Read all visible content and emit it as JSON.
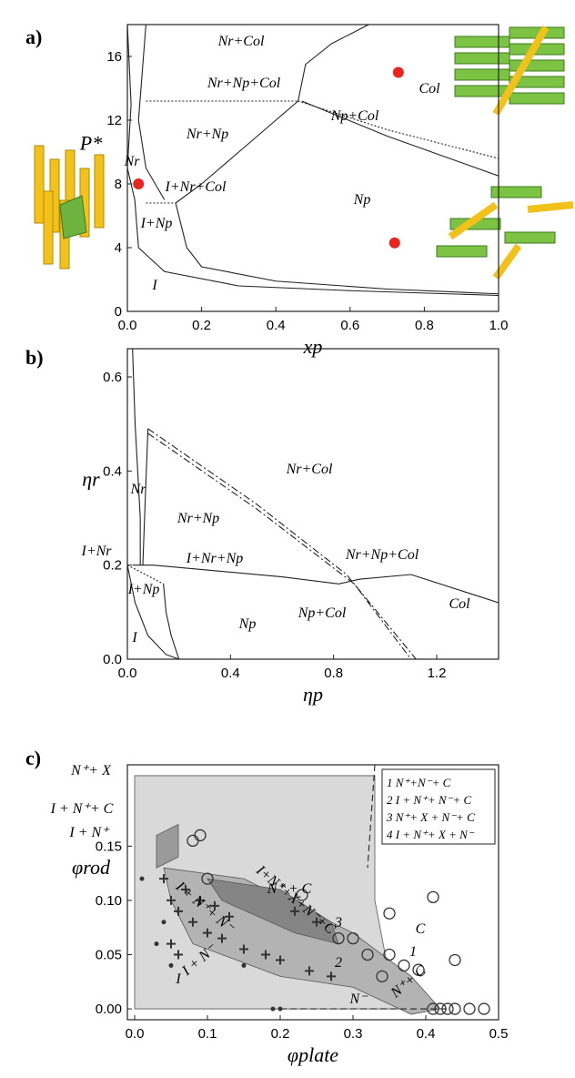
{
  "chart_data": [
    {
      "type": "phase-diagram",
      "label": "a)",
      "x_label": "xp",
      "y_label": "P*",
      "xlim": [
        0,
        1
      ],
      "ylim": [
        0,
        18
      ],
      "xticks": [
        {
          "value": 0,
          "label": "0.0"
        },
        0.2,
        0.4,
        0.6,
        0.8,
        {
          "value": 1,
          "label": "1.0"
        }
      ],
      "yticks": [
        0,
        4,
        8,
        12,
        16
      ],
      "lines": [
        {
          "dash": "solid",
          "x": [
            0.02,
            0.03,
            0.1,
            0.3,
            0.6,
            1.0
          ],
          "y": [
            7,
            4,
            2.5,
            1.6,
            1.3,
            1.0
          ]
        },
        {
          "dash": "solid",
          "x": [
            0.13,
            0.16,
            0.2,
            0.4,
            0.7,
            1.0
          ],
          "y": [
            6.8,
            4,
            2.8,
            1.9,
            1.4,
            1.1
          ]
        },
        {
          "dash": "solid",
          "x": [
            0.0,
            0.01,
            0.0,
            0.02
          ],
          "y": [
            18,
            13,
            9,
            7
          ]
        },
        {
          "dash": "solid",
          "x": [
            0.05,
            0.04,
            0.03,
            0.05,
            0.1
          ],
          "y": [
            18,
            15,
            12,
            9,
            7
          ]
        },
        {
          "dash": "solid",
          "x": [
            0.13,
            0.2,
            0.3,
            0.4,
            0.46
          ],
          "y": [
            6.8,
            8,
            10,
            12,
            13.2
          ]
        },
        {
          "dash": "dotted",
          "x": [
            0.05,
            0.46
          ],
          "y": [
            13.2,
            13.2
          ]
        },
        {
          "dash": "dotted",
          "x": [
            0.05,
            0.13
          ],
          "y": [
            6.8,
            6.8
          ]
        },
        {
          "dash": "solid",
          "x": [
            0.46,
            0.48,
            0.55,
            0.65
          ],
          "y": [
            13.2,
            15.5,
            16.8,
            18
          ]
        },
        {
          "dash": "solid",
          "x": [
            0.47,
            0.7,
            1.0
          ],
          "y": [
            13.2,
            11,
            8.5
          ]
        },
        {
          "dash": "dotted",
          "x": [
            0.46,
            0.7,
            1.0
          ],
          "y": [
            13.2,
            11.4,
            9.6
          ]
        }
      ],
      "points": [
        {
          "marker": "dot",
          "color": "#e8251f",
          "x": [
            0.03,
            0.73,
            0.72
          ],
          "y": [
            8,
            15,
            4.3
          ]
        }
      ],
      "annotations": [
        "Nr+Col",
        "Nr+Np+Col",
        "Np+Col",
        "Col",
        "Nr+Np",
        "Nr",
        "I+Nr+Col",
        "I+Np",
        "Np",
        "I"
      ]
    },
    {
      "type": "phase-diagram",
      "label": "b)",
      "x_label": "ηp",
      "y_label": "ηr",
      "xlim": [
        0,
        1.44
      ],
      "ylim": [
        0,
        0.66
      ],
      "xticks": [
        {
          "value": 0,
          "label": "0.0"
        },
        0.4,
        0.8,
        1.2
      ],
      "yticks": [
        {
          "value": 0,
          "label": "0.0"
        },
        0.2,
        0.4,
        0.6
      ],
      "lines": [
        {
          "dash": "solid",
          "x": [
            0.02,
            0.03,
            0.05,
            0.05
          ],
          "y": [
            0.66,
            0.5,
            0.3,
            0.2
          ]
        },
        {
          "dash": "solid",
          "x": [
            0.0,
            0.03,
            0.08,
            0.15,
            0.2
          ],
          "y": [
            0.2,
            0.12,
            0.05,
            0.01,
            0
          ]
        },
        {
          "dash": "solid",
          "x": [
            0.2,
            0.17,
            0.15,
            0.14
          ],
          "y": [
            0,
            0.05,
            0.1,
            0.16
          ]
        },
        {
          "dash": "solid",
          "x": [
            0.02,
            0.1,
            0.3,
            0.6,
            0.82,
            0.9,
            1.1,
            1.44
          ],
          "y": [
            0.2,
            0.2,
            0.19,
            0.175,
            0.16,
            0.17,
            0.18,
            0.12
          ]
        },
        {
          "dash": "solid",
          "x": [
            0.06,
            0.07,
            0.08
          ],
          "y": [
            0.2,
            0.35,
            0.49
          ]
        },
        {
          "dash": "dashdot",
          "x": [
            0.08,
            0.5,
            0.85,
            1.12
          ],
          "y": [
            0.49,
            0.33,
            0.18,
            0
          ]
        },
        {
          "dash": "dashdot",
          "x": [
            0.08,
            0.5,
            0.88,
            1.1
          ],
          "y": [
            0.48,
            0.32,
            0.16,
            0
          ]
        },
        {
          "dash": "dotted",
          "x": [
            0.0,
            0.14
          ],
          "y": [
            0.2,
            0.16
          ]
        }
      ],
      "points": [],
      "annotations": [
        "Nr+Col",
        "Nr",
        "Nr+Np",
        "I+Nr",
        "I+Nr+Np",
        "I+Np",
        "Nr+Np+Col",
        "Np",
        "Np+Col",
        "Col",
        "I"
      ]
    },
    {
      "type": "phase-diagram",
      "label": "c)",
      "x_label": "φplate",
      "y_label": "φrod",
      "xlim": [
        -0.01,
        0.5
      ],
      "ylim": [
        -0.01,
        0.225
      ],
      "xticks": [
        {
          "value": 0,
          "label": "0.0"
        },
        0.1,
        0.2,
        0.3,
        0.4,
        0.5
      ],
      "yticks": [
        {
          "value": 0,
          "label": "0.00"
        },
        {
          "value": 0.05,
          "label": "0.05"
        },
        {
          "value": 0.1,
          "label": "0.10"
        },
        {
          "value": 0.15,
          "label": "0.15"
        }
      ],
      "regions": [
        {
          "color": "#d9d9d9",
          "x": [
            0.0,
            0.33,
            0.33,
            0.35,
            0.42,
            0.0
          ],
          "y": [
            0.215,
            0.215,
            0.1,
            0.03,
            0.0,
            0.0
          ]
        },
        {
          "color": "#b3b3b3",
          "x": [
            0.04,
            0.15,
            0.3,
            0.38,
            0.42,
            0.38,
            0.3,
            0.2,
            0.08,
            0.05
          ],
          "y": [
            0.13,
            0.12,
            0.07,
            0.03,
            0.0,
            -0.005,
            0.02,
            0.03,
            0.06,
            0.1
          ]
        },
        {
          "color": "#858585",
          "x": [
            0.1,
            0.2,
            0.27,
            0.28,
            0.22,
            0.12
          ],
          "y": [
            0.12,
            0.11,
            0.08,
            0.06,
            0.07,
            0.1
          ]
        },
        {
          "color": "#9a9a9a",
          "x": [
            0.03,
            0.06,
            0.06,
            0.03
          ],
          "y": [
            0.16,
            0.17,
            0.14,
            0.13
          ]
        }
      ],
      "lines": [
        {
          "dash": "dashed",
          "x": [
            0.33,
            0.32
          ],
          "y": [
            0.225,
            0.13
          ]
        },
        {
          "dash": "dashed",
          "x": [
            0.2,
            0.43
          ],
          "y": [
            0,
            0
          ]
        }
      ],
      "points": [
        {
          "marker": "circle",
          "color": "#333333",
          "x": [
            0.09,
            0.08,
            0.1,
            0.23,
            0.28,
            0.3,
            0.32,
            0.35,
            0.37,
            0.34,
            0.35,
            0.41,
            0.39,
            0.44,
            0.41,
            0.42,
            0.43,
            0.44,
            0.46,
            0.48
          ],
          "y": [
            0.16,
            0.155,
            0.12,
            0.105,
            0.065,
            0.065,
            0.05,
            0.05,
            0.04,
            0.03,
            0.088,
            0.103,
            0.036,
            0.045,
            0,
            0,
            0,
            0,
            0,
            0
          ]
        },
        {
          "marker": "cross",
          "color": "#333333",
          "x": [
            0.04,
            0.05,
            0.06,
            0.08,
            0.1,
            0.12,
            0.15,
            0.18,
            0.2,
            0.24,
            0.27,
            0.07,
            0.09,
            0.11,
            0.13,
            0.05,
            0.06,
            0.22,
            0.25
          ],
          "y": [
            0.12,
            0.1,
            0.09,
            0.08,
            0.07,
            0.065,
            0.055,
            0.05,
            0.045,
            0.035,
            0.03,
            0.11,
            0.1,
            0.095,
            0.085,
            0.06,
            0.05,
            0.09,
            0.08
          ]
        },
        {
          "marker": "dot",
          "color": "#333333",
          "x": [
            0.01,
            0.03,
            0.05,
            0.15,
            0.19,
            0.2,
            0.04
          ],
          "y": [
            0.12,
            0.06,
            0.04,
            0.04,
            0,
            0,
            0.08
          ]
        }
      ],
      "annotations": [
        "N⁺+ X",
        "I + N⁺+ C",
        "I + N⁺",
        "N⁺ + C",
        "C",
        "I",
        "N⁻",
        "I + N⁻",
        "N⁺+ C",
        "I + N⁺+ N⁻",
        "I+N⁺+X+N⁻+C",
        "3",
        "2",
        "1"
      ],
      "legend": [
        "1 N⁺+N⁻+ C",
        "2 I + N⁺+ N⁻+ C",
        "3 N⁺+ X + N⁻+ C",
        "4 I + N⁺+ X + N⁻"
      ]
    }
  ]
}
